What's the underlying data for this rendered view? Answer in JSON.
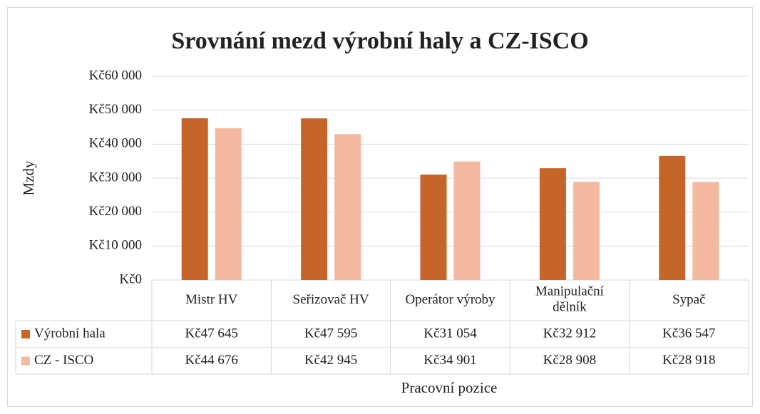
{
  "chart_data": {
    "type": "bar",
    "title": "Srovnání mezd výrobní haly a CZ-ISCO",
    "y_label": "Mzdy",
    "x_label": "Pracovní pozice",
    "categories": [
      "Mistr HV",
      "Seřizovač HV",
      "Operátor výroby",
      "Manipulační dělník",
      "Sypač"
    ],
    "series": [
      {
        "name": "Výrobní hala",
        "color": "#c5652a",
        "values": [
          47645,
          47595,
          31054,
          32912,
          36547
        ],
        "value_labels": [
          "Kč47 645",
          "Kč47 595",
          "Kč31 054",
          "Kč32 912",
          "Kč36 547"
        ]
      },
      {
        "name": "CZ - ISCO",
        "color": "#f4b9a0",
        "values": [
          44676,
          42945,
          34901,
          28908,
          28918
        ],
        "value_labels": [
          "Kč44 676",
          "Kč42 945",
          "Kč34 901",
          "Kč28 908",
          "Kč28 918"
        ]
      }
    ],
    "ylim": [
      0,
      60000
    ],
    "yticks": [
      {
        "value": 0,
        "label": "Kč0"
      },
      {
        "value": 10000,
        "label": "Kč10 000"
      },
      {
        "value": 20000,
        "label": "Kč20 000"
      },
      {
        "value": 30000,
        "label": "Kč30 000"
      },
      {
        "value": 40000,
        "label": "Kč40 000"
      },
      {
        "value": 50000,
        "label": "Kč50 000"
      },
      {
        "value": 60000,
        "label": "Kč60 000"
      }
    ],
    "grid": true,
    "data_table": true
  }
}
